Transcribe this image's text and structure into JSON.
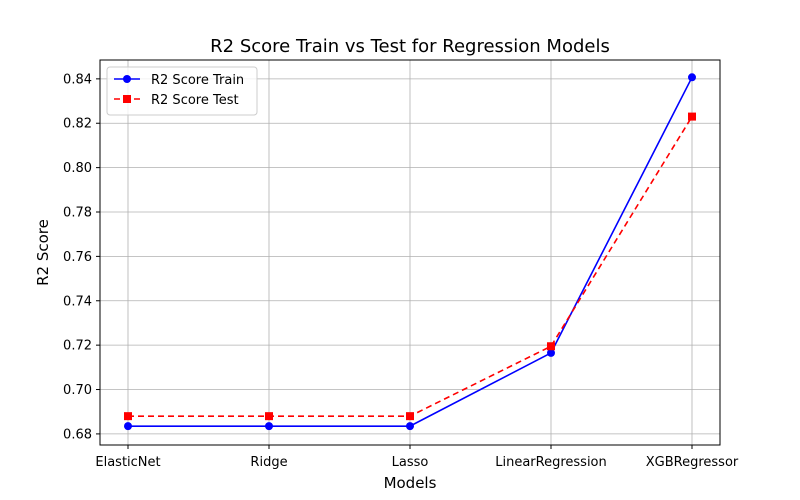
{
  "chart_data": {
    "type": "line",
    "title": "R2 Score Train vs Test for Regression Models",
    "xlabel": "Models",
    "ylabel": "R2 Score",
    "categories": [
      "ElasticNet",
      "Ridge",
      "Lasso",
      "LinearRegression",
      "XGBRegressor"
    ],
    "ylim": [
      0.675,
      0.8485
    ],
    "yticks": [
      0.68,
      0.7,
      0.72,
      0.74,
      0.76,
      0.78,
      0.8,
      0.82,
      0.84
    ],
    "ytick_labels": [
      "0.68",
      "0.70",
      "0.72",
      "0.74",
      "0.76",
      "0.78",
      "0.80",
      "0.82",
      "0.84"
    ],
    "grid": true,
    "legend_position": "top-left",
    "series": [
      {
        "name": "R2 Score Train",
        "values": [
          0.6835,
          0.6835,
          0.6835,
          0.7165,
          0.8407
        ],
        "color": "#0000ff",
        "line_style": "solid",
        "marker": "circle"
      },
      {
        "name": "R2 Score Test",
        "values": [
          0.688,
          0.688,
          0.688,
          0.7195,
          0.823
        ],
        "color": "#ff0000",
        "line_style": "dashed",
        "marker": "square"
      }
    ]
  }
}
